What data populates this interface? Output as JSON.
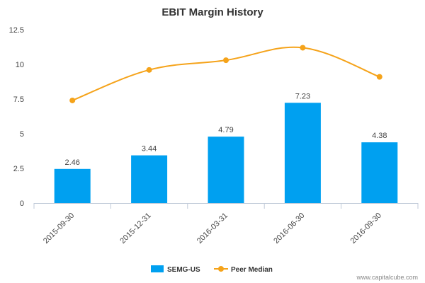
{
  "chart_data": {
    "type": "bar",
    "title": "EBIT Margin History",
    "categories": [
      "2015-09-30",
      "2015-12-31",
      "2016-03-31",
      "2016-06-30",
      "2016-09-30"
    ],
    "series": [
      {
        "name": "SEMG-US",
        "type": "bar",
        "color": "#00a0f0",
        "values": [
          2.46,
          3.44,
          4.79,
          7.23,
          4.38
        ],
        "labels": [
          "2.46",
          "3.44",
          "4.79",
          "7.23",
          "4.38"
        ]
      },
      {
        "name": "Peer Median",
        "type": "line",
        "color": "#f5a31a",
        "values": [
          7.4,
          9.6,
          10.3,
          11.2,
          9.1
        ]
      }
    ],
    "yticks": [
      "0",
      "2.5",
      "5",
      "7.5",
      "10",
      "12.5"
    ],
    "ylim": [
      0,
      12.5
    ],
    "grid": false,
    "legend": "bottom-center"
  },
  "credit": "www.capitalcube.com"
}
